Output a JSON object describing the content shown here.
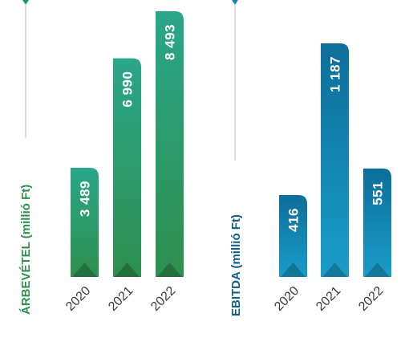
{
  "chart_data": [
    {
      "type": "bar",
      "ylabel": "ÁRBEVÉTEL (millió Ft)",
      "categories": [
        "2020",
        "2021",
        "2022"
      ],
      "values": [
        3489,
        6990,
        8493
      ],
      "value_labels": [
        "3 489",
        "6 990",
        "8 493"
      ],
      "colors": {
        "accent": "#1e9a5a",
        "bar_top": "#2aa68a",
        "bar_bottom": "#2e8f4e",
        "label": "#2e8f4e"
      }
    },
    {
      "type": "bar",
      "ylabel": "EBITDA (millió Ft)",
      "categories": [
        "2020",
        "2021",
        "2022"
      ],
      "values": [
        416,
        1187,
        551
      ],
      "value_labels": [
        "416",
        "1 187",
        "551"
      ],
      "colors": {
        "accent": "#1a7fb0",
        "bar_top": "#0d6e9a",
        "bar_bottom": "#1a9cc8",
        "label": "#0d5e8a"
      }
    }
  ]
}
